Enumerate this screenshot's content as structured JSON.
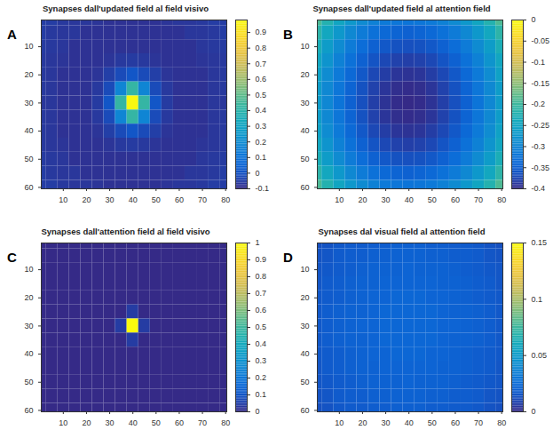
{
  "chart_data": [
    {
      "type": "heatmap",
      "panel": "A",
      "title": "Synapses dall'updated field al field visivo",
      "x": [
        0,
        5,
        10,
        15,
        20,
        25,
        30,
        35,
        40,
        45,
        50,
        55,
        60,
        65,
        70,
        75,
        80
      ],
      "y": [
        0,
        5,
        10,
        15,
        20,
        25,
        30,
        35,
        40,
        45,
        50,
        55,
        60
      ],
      "xlim": [
        0.5,
        80.5
      ],
      "ylim": [
        0.5,
        60.5
      ],
      "xticks": [
        10,
        20,
        30,
        40,
        50,
        60,
        70,
        80
      ],
      "yticks": [
        10,
        20,
        30,
        40,
        50,
        60
      ],
      "colorbar_range": [
        -0.1,
        0.98
      ],
      "colorbar_ticks": [
        -0.1,
        0,
        0.1,
        0.2,
        0.3,
        0.4,
        0.5,
        0.6,
        0.7,
        0.8,
        0.9
      ],
      "values": [
        [
          -0.055,
          -0.055,
          -0.065,
          -0.07,
          -0.07,
          -0.075,
          -0.08,
          -0.08,
          -0.08,
          -0.08,
          -0.08,
          -0.075,
          -0.07,
          -0.07,
          -0.065,
          -0.055,
          -0.055
        ],
        [
          -0.055,
          -0.065,
          -0.07,
          -0.07,
          -0.08,
          -0.08,
          -0.08,
          -0.08,
          -0.08,
          -0.08,
          -0.08,
          -0.08,
          -0.08,
          -0.07,
          -0.07,
          -0.065,
          -0.055
        ],
        [
          -0.06,
          -0.065,
          -0.07,
          -0.08,
          -0.08,
          -0.08,
          -0.08,
          -0.08,
          -0.08,
          -0.08,
          -0.08,
          -0.08,
          -0.08,
          -0.08,
          -0.07,
          -0.065,
          -0.06
        ],
        [
          -0.065,
          -0.07,
          -0.075,
          -0.08,
          -0.08,
          -0.08,
          -0.075,
          -0.065,
          -0.06,
          -0.065,
          -0.075,
          -0.08,
          -0.08,
          -0.08,
          -0.075,
          -0.07,
          -0.065
        ],
        [
          -0.065,
          -0.07,
          -0.08,
          -0.08,
          -0.08,
          -0.075,
          -0.05,
          -0.02,
          0.01,
          -0.02,
          -0.05,
          -0.075,
          -0.08,
          -0.08,
          -0.08,
          -0.07,
          -0.065
        ],
        [
          -0.065,
          -0.07,
          -0.08,
          -0.08,
          -0.08,
          -0.065,
          -0.02,
          0.17,
          0.42,
          0.17,
          -0.02,
          -0.065,
          -0.08,
          -0.08,
          -0.08,
          -0.07,
          -0.065
        ],
        [
          -0.07,
          -0.07,
          -0.08,
          -0.08,
          -0.08,
          -0.06,
          0.01,
          0.42,
          0.97,
          0.42,
          0.01,
          -0.06,
          -0.08,
          -0.08,
          -0.08,
          -0.07,
          -0.07
        ],
        [
          -0.065,
          -0.07,
          -0.08,
          -0.08,
          -0.08,
          -0.065,
          -0.02,
          0.17,
          0.42,
          0.17,
          -0.02,
          -0.065,
          -0.08,
          -0.08,
          -0.08,
          -0.07,
          -0.065
        ],
        [
          -0.065,
          -0.07,
          -0.08,
          -0.08,
          -0.08,
          -0.075,
          -0.05,
          -0.02,
          0.01,
          -0.02,
          -0.05,
          -0.075,
          -0.08,
          -0.08,
          -0.08,
          -0.07,
          -0.065
        ],
        [
          -0.065,
          -0.07,
          -0.075,
          -0.08,
          -0.08,
          -0.08,
          -0.075,
          -0.065,
          -0.06,
          -0.065,
          -0.075,
          -0.08,
          -0.08,
          -0.08,
          -0.075,
          -0.07,
          -0.065
        ],
        [
          -0.06,
          -0.065,
          -0.07,
          -0.08,
          -0.08,
          -0.08,
          -0.08,
          -0.08,
          -0.08,
          -0.08,
          -0.08,
          -0.08,
          -0.08,
          -0.08,
          -0.07,
          -0.065,
          -0.06
        ],
        [
          -0.055,
          -0.065,
          -0.07,
          -0.07,
          -0.08,
          -0.08,
          -0.08,
          -0.08,
          -0.08,
          -0.08,
          -0.08,
          -0.08,
          -0.08,
          -0.07,
          -0.07,
          -0.065,
          -0.055
        ],
        [
          -0.055,
          -0.055,
          -0.065,
          -0.07,
          -0.07,
          -0.075,
          -0.08,
          -0.08,
          -0.08,
          -0.08,
          -0.08,
          -0.075,
          -0.07,
          -0.07,
          -0.065,
          -0.055,
          -0.055
        ]
      ]
    },
    {
      "type": "heatmap",
      "panel": "B",
      "title": "Synapses dall'updated field al attention field",
      "x": [
        0,
        5,
        10,
        15,
        20,
        25,
        30,
        35,
        40,
        45,
        50,
        55,
        60,
        65,
        70,
        75,
        80
      ],
      "y": [
        0,
        5,
        10,
        15,
        20,
        25,
        30,
        35,
        40,
        45,
        50,
        55,
        60
      ],
      "xlim": [
        0.5,
        80.5
      ],
      "ylim": [
        0.5,
        60.5
      ],
      "xticks": [
        10,
        20,
        30,
        40,
        50,
        60,
        70,
        80
      ],
      "yticks": [
        10,
        20,
        30,
        40,
        50,
        60
      ],
      "colorbar_range": [
        -0.4,
        0
      ],
      "colorbar_ticks": [
        -0.4,
        -0.35,
        -0.3,
        -0.25,
        -0.2,
        -0.15,
        -0.1,
        -0.05,
        0
      ],
      "values": [
        [
          -0.19,
          -0.222,
          -0.249,
          -0.272,
          -0.291,
          -0.306,
          -0.316,
          -0.322,
          -0.324,
          -0.322,
          -0.316,
          -0.306,
          -0.291,
          -0.272,
          -0.249,
          -0.222,
          -0.19
        ],
        [
          -0.213,
          -0.245,
          -0.272,
          -0.295,
          -0.314,
          -0.329,
          -0.339,
          -0.345,
          -0.348,
          -0.345,
          -0.339,
          -0.329,
          -0.314,
          -0.295,
          -0.272,
          -0.245,
          -0.213
        ],
        [
          -0.232,
          -0.264,
          -0.291,
          -0.314,
          -0.333,
          -0.348,
          -0.358,
          -0.364,
          -0.366,
          -0.364,
          -0.358,
          -0.348,
          -0.333,
          -0.314,
          -0.291,
          -0.264,
          -0.232
        ],
        [
          -0.247,
          -0.278,
          -0.306,
          -0.329,
          -0.348,
          -0.362,
          -0.373,
          -0.379,
          -0.381,
          -0.379,
          -0.373,
          -0.362,
          -0.348,
          -0.329,
          -0.306,
          -0.278,
          -0.247
        ],
        [
          -0.257,
          -0.289,
          -0.316,
          -0.339,
          -0.358,
          -0.373,
          -0.383,
          -0.39,
          -0.392,
          -0.39,
          -0.383,
          -0.373,
          -0.358,
          -0.339,
          -0.316,
          -0.289,
          -0.257
        ],
        [
          -0.264,
          -0.295,
          -0.322,
          -0.345,
          -0.364,
          -0.379,
          -0.39,
          -0.396,
          -0.398,
          -0.396,
          -0.39,
          -0.379,
          -0.364,
          -0.345,
          -0.322,
          -0.295,
          -0.264
        ],
        [
          -0.266,
          -0.297,
          -0.324,
          -0.348,
          -0.366,
          -0.381,
          -0.392,
          -0.398,
          -0.4,
          -0.398,
          -0.392,
          -0.381,
          -0.366,
          -0.348,
          -0.324,
          -0.297,
          -0.266
        ],
        [
          -0.264,
          -0.295,
          -0.322,
          -0.345,
          -0.364,
          -0.379,
          -0.39,
          -0.396,
          -0.398,
          -0.396,
          -0.39,
          -0.379,
          -0.364,
          -0.345,
          -0.322,
          -0.295,
          -0.264
        ],
        [
          -0.257,
          -0.289,
          -0.316,
          -0.339,
          -0.358,
          -0.373,
          -0.383,
          -0.39,
          -0.392,
          -0.39,
          -0.383,
          -0.373,
          -0.358,
          -0.339,
          -0.316,
          -0.289,
          -0.257
        ],
        [
          -0.247,
          -0.278,
          -0.306,
          -0.329,
          -0.348,
          -0.362,
          -0.373,
          -0.379,
          -0.381,
          -0.379,
          -0.373,
          -0.362,
          -0.348,
          -0.329,
          -0.306,
          -0.278,
          -0.247
        ],
        [
          -0.232,
          -0.264,
          -0.291,
          -0.314,
          -0.333,
          -0.348,
          -0.358,
          -0.364,
          -0.366,
          -0.364,
          -0.358,
          -0.348,
          -0.333,
          -0.314,
          -0.291,
          -0.264,
          -0.232
        ],
        [
          -0.213,
          -0.245,
          -0.272,
          -0.295,
          -0.314,
          -0.329,
          -0.339,
          -0.345,
          -0.348,
          -0.345,
          -0.339,
          -0.329,
          -0.314,
          -0.295,
          -0.272,
          -0.245,
          -0.213
        ],
        [
          -0.19,
          -0.222,
          -0.249,
          -0.272,
          -0.291,
          -0.306,
          -0.316,
          -0.322,
          -0.324,
          -0.322,
          -0.316,
          -0.306,
          -0.291,
          -0.272,
          -0.249,
          -0.222,
          -0.19
        ]
      ]
    },
    {
      "type": "heatmap",
      "panel": "C",
      "title": "Synapses dall'attention field al field visivo",
      "x": [
        0,
        5,
        10,
        15,
        20,
        25,
        30,
        35,
        40,
        45,
        50,
        55,
        60,
        65,
        70,
        75,
        80
      ],
      "y": [
        0,
        5,
        10,
        15,
        20,
        25,
        30,
        35,
        40,
        45,
        50,
        55,
        60
      ],
      "xlim": [
        0.5,
        80.5
      ],
      "ylim": [
        0.5,
        60.5
      ],
      "xticks": [
        10,
        20,
        30,
        40,
        50,
        60,
        70,
        80
      ],
      "yticks": [
        10,
        20,
        30,
        40,
        50,
        60
      ],
      "colorbar_range": [
        0,
        1
      ],
      "colorbar_ticks": [
        0,
        0.1,
        0.2,
        0.3,
        0.4,
        0.5,
        0.6,
        0.7,
        0.8,
        0.9,
        1
      ],
      "values": [
        [
          0,
          0,
          0,
          0,
          0,
          0,
          0,
          0,
          0,
          0,
          0,
          0,
          0,
          0,
          0,
          0,
          0
        ],
        [
          0,
          0,
          0,
          0,
          0,
          0,
          0,
          0,
          0,
          0,
          0,
          0,
          0,
          0,
          0,
          0,
          0
        ],
        [
          0,
          0,
          0,
          0,
          0,
          0,
          0,
          0,
          0,
          0,
          0,
          0,
          0,
          0,
          0,
          0,
          0
        ],
        [
          0,
          0,
          0,
          0,
          0,
          0,
          0,
          0,
          0,
          0,
          0,
          0,
          0,
          0,
          0,
          0,
          0
        ],
        [
          0,
          0,
          0,
          0,
          0,
          0,
          0,
          0,
          0,
          0,
          0,
          0,
          0,
          0,
          0,
          0,
          0
        ],
        [
          0,
          0,
          0,
          0,
          0,
          0,
          0,
          0,
          0.04,
          0,
          0,
          0,
          0,
          0,
          0,
          0,
          0
        ],
        [
          0,
          0,
          0,
          0,
          0,
          0,
          0,
          0.04,
          1,
          0.04,
          0,
          0,
          0,
          0,
          0,
          0,
          0
        ],
        [
          0,
          0,
          0,
          0,
          0,
          0,
          0,
          0,
          0.04,
          0,
          0,
          0,
          0,
          0,
          0,
          0,
          0
        ],
        [
          0,
          0,
          0,
          0,
          0,
          0,
          0,
          0,
          0,
          0,
          0,
          0,
          0,
          0,
          0,
          0,
          0
        ],
        [
          0,
          0,
          0,
          0,
          0,
          0,
          0,
          0,
          0,
          0,
          0,
          0,
          0,
          0,
          0,
          0,
          0
        ],
        [
          0,
          0,
          0,
          0,
          0,
          0,
          0,
          0,
          0,
          0,
          0,
          0,
          0,
          0,
          0,
          0,
          0
        ],
        [
          0,
          0,
          0,
          0,
          0,
          0,
          0,
          0,
          0,
          0,
          0,
          0,
          0,
          0,
          0,
          0,
          0
        ],
        [
          0,
          0,
          0,
          0,
          0,
          0,
          0,
          0,
          0,
          0,
          0,
          0,
          0,
          0,
          0,
          0,
          0
        ]
      ]
    },
    {
      "type": "heatmap",
      "panel": "D",
      "title": "Synapses dal visual field al attention field",
      "x": [
        0,
        5,
        10,
        15,
        20,
        25,
        30,
        35,
        40,
        45,
        50,
        55,
        60,
        65,
        70,
        75,
        80
      ],
      "y": [
        0,
        5,
        10,
        15,
        20,
        25,
        30,
        35,
        40,
        45,
        50,
        55,
        60
      ],
      "xlim": [
        0.5,
        80.5
      ],
      "ylim": [
        0.5,
        60.5
      ],
      "xticks": [
        10,
        20,
        30,
        40,
        50,
        60,
        70,
        80
      ],
      "yticks": [
        10,
        20,
        30,
        40,
        50,
        60
      ],
      "colorbar_range": [
        0,
        0.15
      ],
      "colorbar_ticks": [
        0,
        0.05,
        0.1,
        0.15
      ],
      "values": [
        [
          0.013,
          0.014,
          0.016,
          0.017,
          0.017,
          0.018,
          0.018,
          0.019,
          0.019,
          0.019,
          0.018,
          0.018,
          0.017,
          0.017,
          0.016,
          0.014,
          0.013
        ],
        [
          0.014,
          0.015,
          0.017,
          0.018,
          0.018,
          0.019,
          0.019,
          0.02,
          0.02,
          0.02,
          0.019,
          0.019,
          0.018,
          0.018,
          0.017,
          0.015,
          0.014
        ],
        [
          0.015,
          0.016,
          0.017,
          0.018,
          0.019,
          0.02,
          0.02,
          0.02,
          0.021,
          0.02,
          0.02,
          0.02,
          0.019,
          0.018,
          0.017,
          0.016,
          0.015
        ],
        [
          0.015,
          0.017,
          0.018,
          0.019,
          0.02,
          0.02,
          0.021,
          0.021,
          0.021,
          0.021,
          0.021,
          0.02,
          0.02,
          0.019,
          0.018,
          0.017,
          0.015
        ],
        [
          0.016,
          0.017,
          0.018,
          0.019,
          0.02,
          0.021,
          0.021,
          0.022,
          0.022,
          0.022,
          0.021,
          0.021,
          0.02,
          0.019,
          0.018,
          0.017,
          0.016
        ],
        [
          0.016,
          0.018,
          0.019,
          0.02,
          0.02,
          0.021,
          0.022,
          0.022,
          0.022,
          0.022,
          0.022,
          0.021,
          0.02,
          0.02,
          0.019,
          0.018,
          0.016
        ],
        [
          0.016,
          0.018,
          0.019,
          0.02,
          0.021,
          0.021,
          0.022,
          0.022,
          0.022,
          0.022,
          0.022,
          0.021,
          0.021,
          0.02,
          0.019,
          0.018,
          0.016
        ],
        [
          0.016,
          0.018,
          0.019,
          0.02,
          0.02,
          0.021,
          0.022,
          0.022,
          0.022,
          0.022,
          0.022,
          0.021,
          0.02,
          0.02,
          0.019,
          0.018,
          0.016
        ],
        [
          0.016,
          0.017,
          0.018,
          0.019,
          0.02,
          0.021,
          0.021,
          0.022,
          0.022,
          0.022,
          0.021,
          0.021,
          0.02,
          0.019,
          0.018,
          0.017,
          0.016
        ],
        [
          0.015,
          0.017,
          0.018,
          0.019,
          0.02,
          0.02,
          0.021,
          0.021,
          0.021,
          0.021,
          0.021,
          0.02,
          0.02,
          0.019,
          0.018,
          0.017,
          0.015
        ],
        [
          0.015,
          0.016,
          0.017,
          0.018,
          0.019,
          0.02,
          0.02,
          0.02,
          0.021,
          0.02,
          0.02,
          0.02,
          0.019,
          0.018,
          0.017,
          0.016,
          0.015
        ],
        [
          0.014,
          0.015,
          0.017,
          0.018,
          0.018,
          0.019,
          0.019,
          0.02,
          0.02,
          0.02,
          0.019,
          0.019,
          0.018,
          0.018,
          0.017,
          0.015,
          0.014
        ],
        [
          0.013,
          0.014,
          0.016,
          0.017,
          0.017,
          0.018,
          0.018,
          0.019,
          0.019,
          0.019,
          0.018,
          0.018,
          0.017,
          0.017,
          0.016,
          0.014,
          0.013
        ]
      ]
    }
  ]
}
